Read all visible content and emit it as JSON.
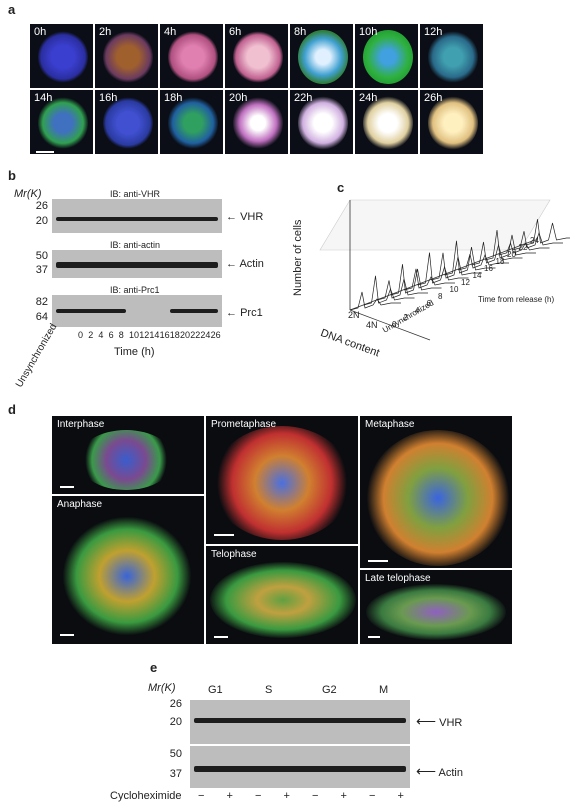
{
  "panel_a": {
    "label": "a",
    "timepoints": [
      "0h",
      "2h",
      "4h",
      "6h",
      "8h",
      "10h",
      "12h",
      "14h",
      "16h",
      "18h",
      "20h",
      "22h",
      "24h",
      "26h"
    ]
  },
  "panel_b": {
    "label": "b",
    "mr_label": "Mr(K)",
    "blots": [
      {
        "ib": "IB: anti-VHR",
        "markers": [
          "26",
          "20"
        ],
        "protein": "VHR"
      },
      {
        "ib": "IB: anti-actin",
        "markers": [
          "50",
          "37"
        ],
        "protein": "Actin"
      },
      {
        "ib": "IB: anti-Prc1",
        "markers": [
          "82",
          "64"
        ],
        "protein": "Prc1"
      }
    ],
    "lanes": [
      "0",
      "2",
      "4",
      "6",
      "8",
      "10",
      "12",
      "14",
      "16",
      "18",
      "20",
      "22",
      "24",
      "26"
    ],
    "unsync": "Unsynchronized",
    "xlabel": "Time (h)"
  },
  "panel_c": {
    "label": "c",
    "ylabel": "Number of cells",
    "xlabel": "DNA content",
    "x_ticks": [
      "2N",
      "4N"
    ],
    "z_ticks": [
      "24",
      "22",
      "20",
      "18",
      "16",
      "14",
      "12",
      "10",
      "8",
      "6",
      "4",
      "2",
      "0",
      "Unsynchronized"
    ],
    "zlabel": "Time from release (h)"
  },
  "panel_d": {
    "label": "d",
    "phases": [
      "Interphase",
      "Prometaphase",
      "Metaphase",
      "Anaphase",
      "Telophase",
      "Late telophase"
    ]
  },
  "panel_e": {
    "label": "e",
    "mr_label": "Mr(K)",
    "phases": [
      "G1",
      "S",
      "G2",
      "M"
    ],
    "markers_top": [
      "26",
      "20"
    ],
    "markers_bottom": [
      "50",
      "37"
    ],
    "protein_top": "VHR",
    "protein_bottom": "Actin",
    "treatment": "Cycloheximide",
    "signs": [
      "−",
      "+",
      "−",
      "+",
      "−",
      "+",
      "−",
      "+"
    ]
  }
}
